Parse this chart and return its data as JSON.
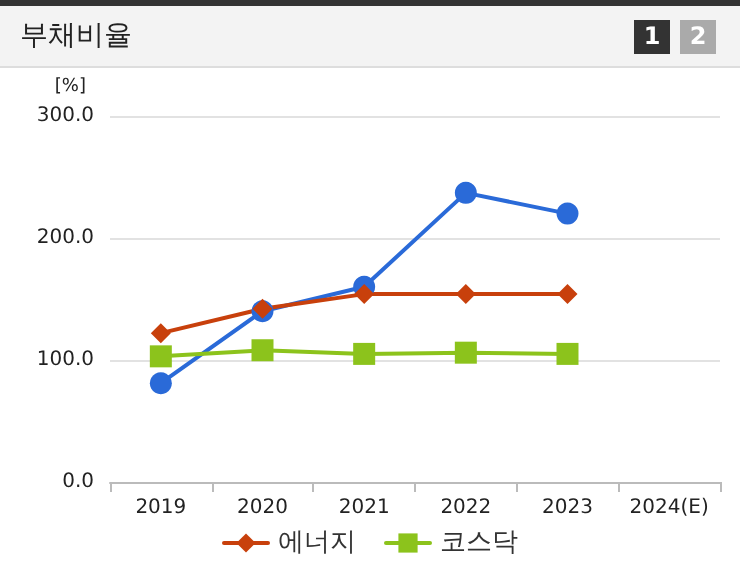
{
  "chart_data": {
    "type": "line",
    "title": "부채비율",
    "ylabel": "[%]",
    "annotations": [
      "1",
      "2"
    ],
    "categories": [
      "2019",
      "2020",
      "2021",
      "2022",
      "2023",
      "2024(E)"
    ],
    "series": [
      {
        "color": "#2a6ad8",
        "marker": "circle",
        "values": [
          81,
          140,
          160,
          237,
          220,
          null
        ]
      },
      {
        "name": "에너지",
        "color": "#c8400c",
        "marker": "diamond",
        "values": [
          122,
          142,
          154,
          154,
          154,
          null
        ]
      },
      {
        "name": "코스닥",
        "color": "#8cc31c",
        "marker": "square",
        "values": [
          103,
          108,
          105,
          106,
          105,
          null
        ]
      }
    ],
    "ylim": [
      0,
      300
    ],
    "yticks": [
      {
        "value": 0,
        "label": "0.0"
      },
      {
        "value": 100,
        "label": "100.0"
      },
      {
        "value": 200,
        "label": "200.0"
      },
      {
        "value": 300,
        "label": "300.0"
      }
    ],
    "grid": "y",
    "legend": "bottom"
  }
}
